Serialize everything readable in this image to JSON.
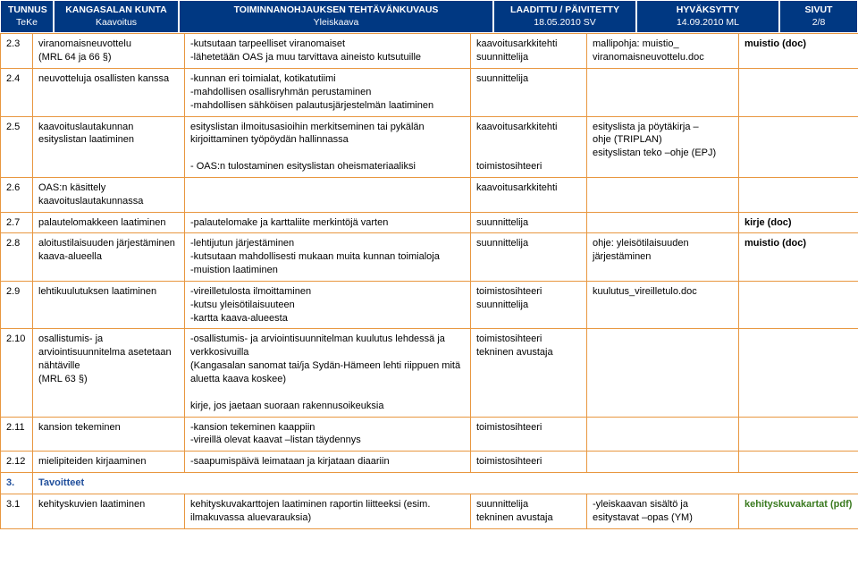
{
  "header": {
    "h1_top": "TUNNUS",
    "h1_sub": "TeKe",
    "h2_top": "KANGASALAN KUNTA",
    "h2_sub": "Kaavoitus",
    "h3_top": "TOIMINNANOHJAUKSEN TEHTÄVÄNKUVAUS",
    "h3_sub": "Yleiskaava",
    "h4_top": "LAADITTU / PÄIVITETTY",
    "h4_sub": "18.05.2010 SV",
    "h5_top": "HYVÄKSYTTY",
    "h5_sub": "14.09.2010 ML",
    "h6_top": "SIVUT",
    "h6_sub": "2/8"
  },
  "rows": [
    {
      "id": "2.3",
      "task": "viranomaisneuvottelu\n(MRL 64 ja 66 §)",
      "desc": "-kutsutaan tarpeelliset viranomaiset\n-lähetetään OAS ja muu tarvittava aineisto kutsutuille",
      "resp": "kaavoitusarkkitehti\nsuunnittelija",
      "ref": "mallipohja: muistio_\nviranomaisneuvottelu.doc",
      "out": "muistio (doc)",
      "outBold": true
    },
    {
      "id": "2.4",
      "task": "neuvotteluja osallisten kanssa",
      "desc": "-kunnan eri toimialat, kotikatutiimi\n-mahdollisen osallisryhmän perustaminen\n-mahdollisen sähköisen palautusjärjestelmän laatiminen",
      "resp": "suunnittelija",
      "ref": "",
      "out": ""
    },
    {
      "id": "2.5",
      "task": "kaavoituslautakunnan esityslistan laatiminen",
      "desc": "esityslistan ilmoitusasioihin merkitseminen tai pykälän kirjoittaminen työpöydän hallinnassa\n\n- OAS:n tulostaminen esityslistan oheismateriaaliksi",
      "resp": "kaavoitusarkkitehti\n\n\ntoimistosihteeri",
      "ref": "esityslista ja pöytäkirja –\nohje (TRIPLAN)\nesityslistan teko –ohje (EPJ)",
      "out": ""
    },
    {
      "id": "2.6",
      "task": "OAS:n käsittely kaavoituslautakunnassa",
      "desc": "",
      "resp": "kaavoitusarkkitehti",
      "ref": "",
      "out": ""
    },
    {
      "id": "2.7",
      "task": "palautelomakkeen laatiminen",
      "desc": "-palautelomake ja karttaliite merkintöjä varten",
      "resp": "suunnittelija",
      "ref": "",
      "out": "kirje (doc)",
      "outBold": true
    },
    {
      "id": "2.8",
      "task": "aloitustilaisuuden järjestäminen kaava-alueella",
      "desc": "-lehtijutun järjestäminen\n-kutsutaan mahdollisesti mukaan muita kunnan toimialoja\n-muistion laatiminen",
      "resp": "suunnittelija",
      "ref": "ohje: yleisötilaisuuden järjestäminen",
      "out": "muistio (doc)",
      "outBold": true
    },
    {
      "id": "2.9",
      "task": "lehtikuulutuksen laatiminen",
      "desc": "-vireilletulosta ilmoittaminen\n-kutsu yleisötilaisuuteen\n-kartta kaava-alueesta",
      "resp": "toimistosihteeri\nsuunnittelija",
      "ref": "kuulutus_vireilletulo.doc",
      "out": ""
    },
    {
      "id": "2.10",
      "task": "osallistumis- ja arviointisuunnitelma asetetaan nähtäville\n(MRL 63 §)",
      "desc": "-osallistumis- ja arviointisuunnitelman kuulutus lehdessä ja verkkosivuilla\n(Kangasalan sanomat tai/ja Sydän-Hämeen lehti riippuen mitä aluetta kaava koskee)\n\nkirje, jos jaetaan suoraan rakennusoikeuksia",
      "resp": "toimistosihteeri\ntekninen avustaja",
      "ref": "",
      "out": ""
    },
    {
      "id": "2.11",
      "task": "kansion tekeminen",
      "desc": "-kansion tekeminen kaappiin\n-vireillä olevat kaavat –listan täydennys",
      "resp": "toimistosihteeri",
      "ref": "",
      "out": ""
    },
    {
      "id": "2.12",
      "task": "mielipiteiden kirjaaminen",
      "desc": "-saapumispäivä leimataan ja kirjataan diaariin",
      "resp": "toimistosihteeri",
      "ref": "",
      "out": ""
    }
  ],
  "section": {
    "num": "3.",
    "title": "Tavoitteet"
  },
  "row31": {
    "id": "3.1",
    "task": "kehityskuvien laatiminen",
    "desc": "kehityskuvakarttojen laatiminen raportin liitteeksi (esim. ilmakuvassa aluevarauksia)",
    "resp": "suunnittelija\ntekninen avustaja",
    "ref": "-yleiskaavan sisältö ja esitystavat –opas (YM)",
    "out": "kehityskuvakartat (pdf)"
  }
}
